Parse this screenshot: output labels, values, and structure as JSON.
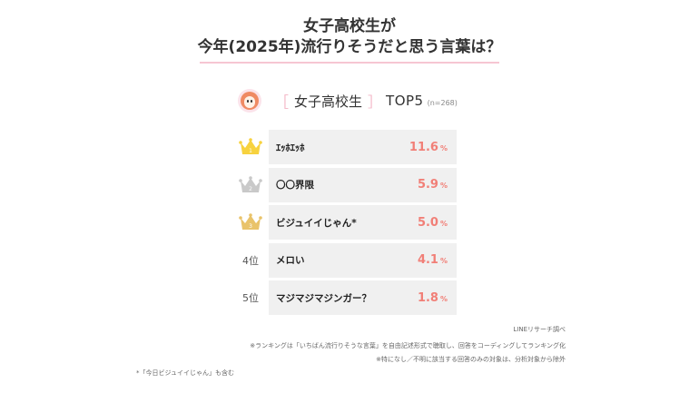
{
  "title_line1": "女子高校生が",
  "title_line2": "今年(2025年)流行りそうだと思う言葉は？",
  "heading": {
    "open_bracket": "［",
    "group": "女子高校生",
    "close_bracket": "］",
    "top_label": "TOP5",
    "sample": "(n=268)"
  },
  "chart_data": {
    "type": "table",
    "ranks": [
      "1",
      "2",
      "3",
      "4位",
      "5位"
    ],
    "categories": [
      "ｴｯﾎｴｯﾎ",
      "〇〇界限",
      "ビジュイイじゃん*",
      "メロい",
      "マジマジマジンガー？"
    ],
    "values": [
      "11.6",
      "5.9",
      "5.0",
      "4.1",
      "1.8"
    ],
    "unit": "%",
    "crown_colors": [
      "#f7d23e",
      "#c9c9c9",
      "#e9c36a"
    ]
  },
  "notes": {
    "source": "LINEリサーチ調べ",
    "note1": "※ランキングは「いちばん流行りそうな言葉」を自由記述形式で聴取し、回答をコーディングしてランキング化",
    "note2": "※特になし／不明に該当する回答のみの対象は、分析対象から除外",
    "note3": "*「今日ビジュイイじゃん」も含む"
  }
}
